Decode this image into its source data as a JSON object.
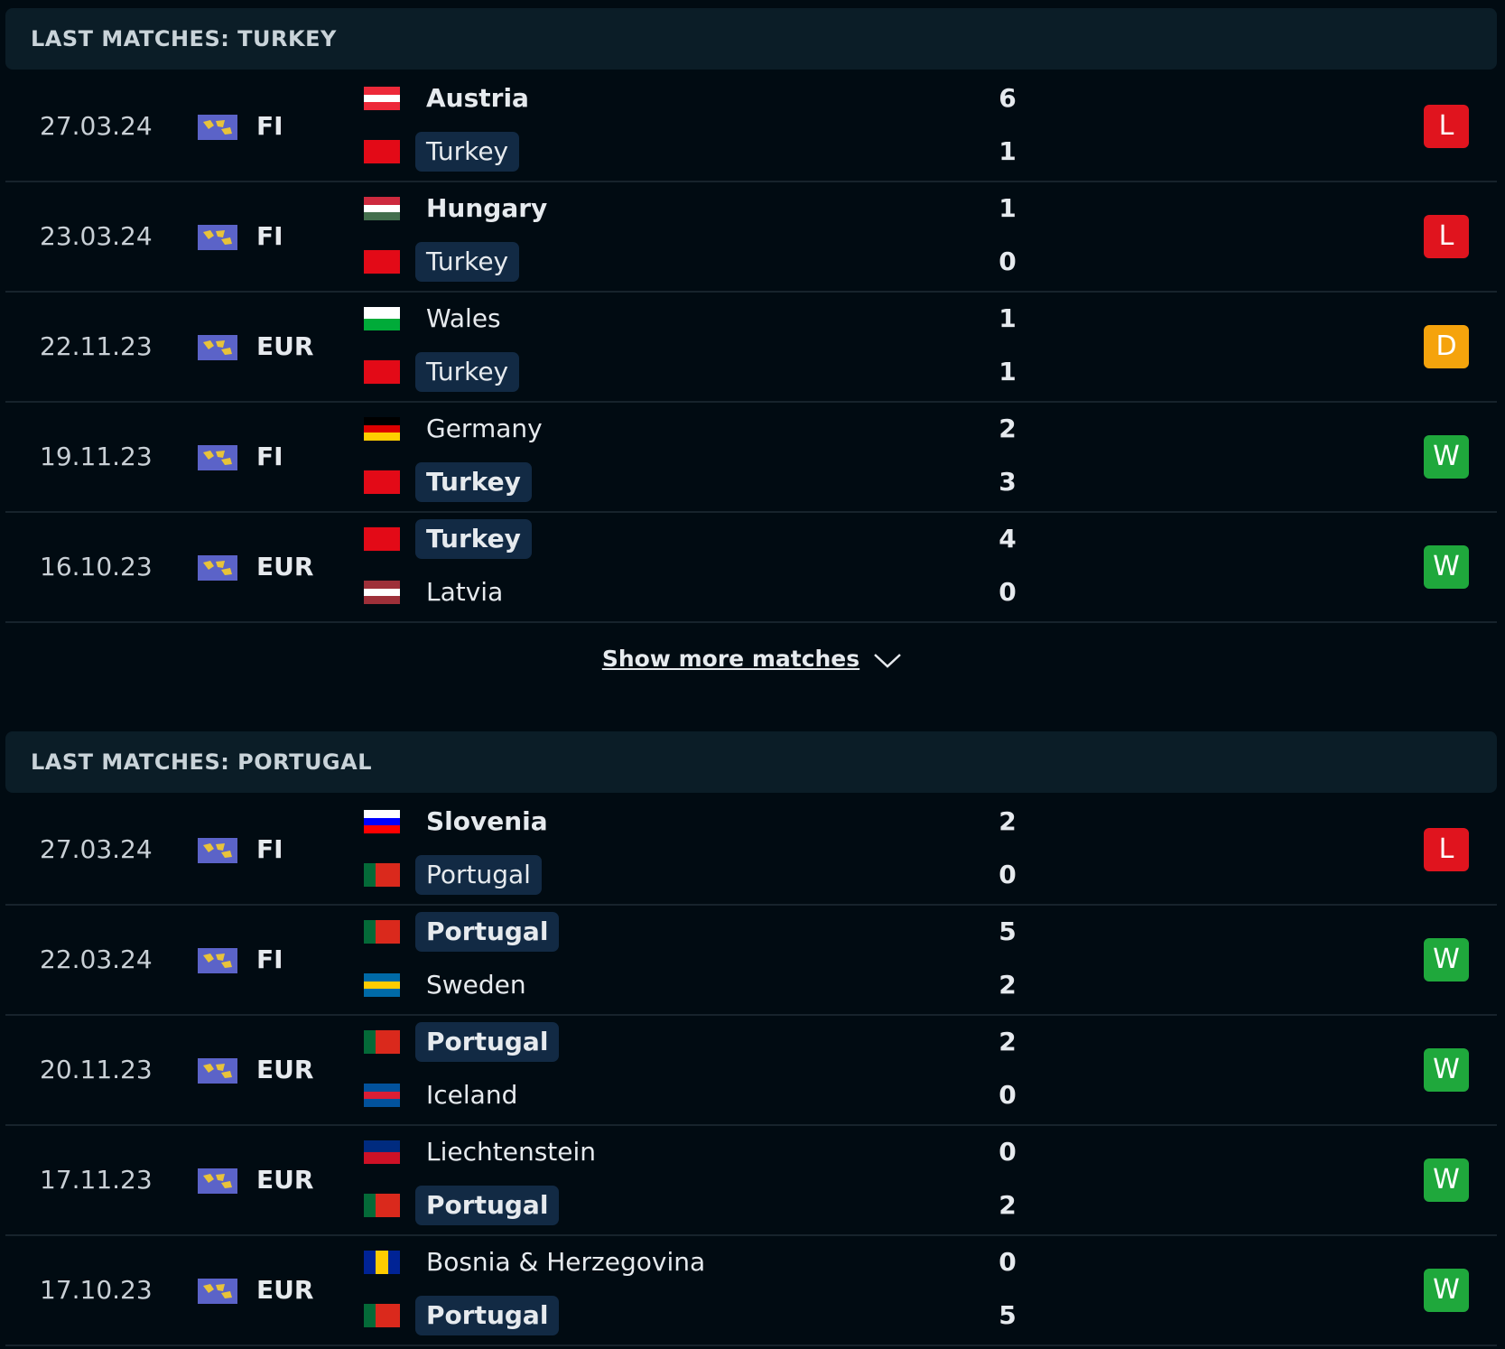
{
  "sections": [
    {
      "title": "LAST MATCHES: TURKEY",
      "matches": [
        {
          "date": "27.03.24",
          "league": "FI",
          "result": "L",
          "result_color": "#e0141e",
          "home": {
            "name": "Austria",
            "score": 6,
            "flag": {
              "stripes": [
                "#ed2939",
                "#ffffff",
                "#ed2939"
              ],
              "dir": "h"
            }
          },
          "away": {
            "name": "Turkey",
            "score": 1,
            "highlight": true,
            "flag": {
              "stripes": [
                "#e30a17"
              ],
              "dir": "h"
            }
          }
        },
        {
          "date": "23.03.24",
          "league": "FI",
          "result": "L",
          "result_color": "#e0141e",
          "home": {
            "name": "Hungary",
            "score": 1,
            "flag": {
              "stripes": [
                "#cd2a3e",
                "#ffffff",
                "#436f4d"
              ],
              "dir": "h"
            }
          },
          "away": {
            "name": "Turkey",
            "score": 0,
            "highlight": true,
            "flag": {
              "stripes": [
                "#e30a17"
              ],
              "dir": "h"
            }
          }
        },
        {
          "date": "22.11.23",
          "league": "EUR",
          "result": "D",
          "result_color": "#f5a30c",
          "home": {
            "name": "Wales",
            "score": 1,
            "flag": {
              "stripes": [
                "#ffffff",
                "#00ab39"
              ],
              "dir": "h"
            }
          },
          "away": {
            "name": "Turkey",
            "score": 1,
            "highlight": true,
            "flag": {
              "stripes": [
                "#e30a17"
              ],
              "dir": "h"
            }
          }
        },
        {
          "date": "19.11.23",
          "league": "FI",
          "result": "W",
          "result_color": "#1fa83c",
          "home": {
            "name": "Germany",
            "score": 2,
            "flag": {
              "stripes": [
                "#000000",
                "#dd0000",
                "#ffce00"
              ],
              "dir": "h"
            }
          },
          "away": {
            "name": "Turkey",
            "score": 3,
            "highlight": true,
            "flag": {
              "stripes": [
                "#e30a17"
              ],
              "dir": "h"
            }
          }
        },
        {
          "date": "16.10.23",
          "league": "EUR",
          "result": "W",
          "result_color": "#1fa83c",
          "home": {
            "name": "Turkey",
            "score": 4,
            "highlight": true,
            "flag": {
              "stripes": [
                "#e30a17"
              ],
              "dir": "h"
            }
          },
          "away": {
            "name": "Latvia",
            "score": 0,
            "flag": {
              "stripes": [
                "#9e3039",
                "#ffffff",
                "#9e3039"
              ],
              "dir": "h"
            }
          }
        }
      ]
    },
    {
      "title": "LAST MATCHES: PORTUGAL",
      "matches": [
        {
          "date": "27.03.24",
          "league": "FI",
          "result": "L",
          "result_color": "#e0141e",
          "home": {
            "name": "Slovenia",
            "score": 2,
            "flag": {
              "stripes": [
                "#ffffff",
                "#0000ff",
                "#ff0000"
              ],
              "dir": "h"
            }
          },
          "away": {
            "name": "Portugal",
            "score": 0,
            "highlight": true,
            "flag": {
              "stripes": [
                "#046a38",
                "#da291c",
                "#da291c"
              ],
              "dir": "v"
            }
          }
        },
        {
          "date": "22.03.24",
          "league": "FI",
          "result": "W",
          "result_color": "#1fa83c",
          "home": {
            "name": "Portugal",
            "score": 5,
            "highlight": true,
            "flag": {
              "stripes": [
                "#046a38",
                "#da291c",
                "#da291c"
              ],
              "dir": "v"
            }
          },
          "away": {
            "name": "Sweden",
            "score": 2,
            "flag": {
              "stripes": [
                "#006aa7",
                "#fecc00",
                "#006aa7"
              ],
              "dir": "h"
            }
          }
        },
        {
          "date": "20.11.23",
          "league": "EUR",
          "result": "W",
          "result_color": "#1fa83c",
          "home": {
            "name": "Portugal",
            "score": 2,
            "highlight": true,
            "flag": {
              "stripes": [
                "#046a38",
                "#da291c",
                "#da291c"
              ],
              "dir": "v"
            }
          },
          "away": {
            "name": "Iceland",
            "score": 0,
            "flag": {
              "stripes": [
                "#02529c",
                "#dc1e35",
                "#02529c"
              ],
              "dir": "h"
            }
          }
        },
        {
          "date": "17.11.23",
          "league": "EUR",
          "result": "W",
          "result_color": "#1fa83c",
          "home": {
            "name": "Liechtenstein",
            "score": 0,
            "flag": {
              "stripes": [
                "#002b7f",
                "#ce1126"
              ],
              "dir": "h"
            }
          },
          "away": {
            "name": "Portugal",
            "score": 2,
            "highlight": true,
            "flag": {
              "stripes": [
                "#046a38",
                "#da291c",
                "#da291c"
              ],
              "dir": "v"
            }
          }
        },
        {
          "date": "17.10.23",
          "league": "EUR",
          "result": "W",
          "result_color": "#1fa83c",
          "home": {
            "name": "Bosnia & Herzegovina",
            "score": 0,
            "flag": {
              "stripes": [
                "#002395",
                "#fecb00",
                "#002395"
              ],
              "dir": "v"
            }
          },
          "away": {
            "name": "Portugal",
            "score": 5,
            "highlight": true,
            "flag": {
              "stripes": [
                "#046a38",
                "#da291c",
                "#da291c"
              ],
              "dir": "v"
            }
          }
        }
      ]
    }
  ],
  "show_more": "Show more matches"
}
